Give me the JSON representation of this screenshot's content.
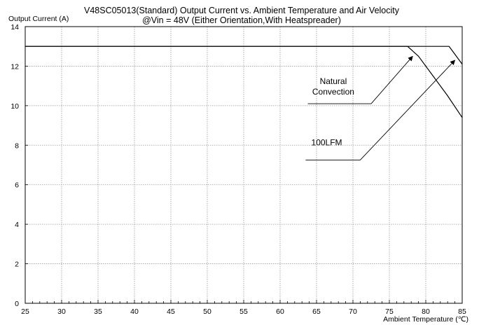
{
  "chart_data": {
    "type": "line",
    "title": "V48SC05013(Standard)  Output Current vs. Ambient Temperature and Air Velocity",
    "subtitle": "@Vin = 48V (Either Orientation,With Heatspreader)",
    "xlabel": "Ambient Temperature (℃)",
    "ylabel": "Output Current (A)",
    "xlim": [
      25,
      85
    ],
    "ylim": [
      0,
      14
    ],
    "x_ticks": [
      25,
      30,
      35,
      40,
      45,
      50,
      55,
      60,
      65,
      70,
      75,
      80,
      85
    ],
    "y_ticks": [
      0,
      2,
      4,
      6,
      8,
      10,
      12,
      14
    ],
    "x_minor_step": 1,
    "grid": true,
    "series": [
      {
        "name": "Natural Convection",
        "color": "#000000",
        "points": [
          [
            25,
            13
          ],
          [
            77.5,
            13
          ],
          [
            79,
            12.5
          ],
          [
            81,
            11.5
          ],
          [
            83,
            10.5
          ],
          [
            85,
            9.4
          ]
        ]
      },
      {
        "name": "100LFM",
        "color": "#000000",
        "points": [
          [
            25,
            13
          ],
          [
            83.2,
            13
          ],
          [
            84,
            12.6
          ],
          [
            85,
            12.1
          ]
        ]
      }
    ],
    "annotations": [
      {
        "lines": [
          "Natural",
          "Convection"
        ],
        "text_at": [
          67.3,
          11.1
        ],
        "leader": [
          [
            63.8,
            10.1
          ],
          [
            72.5,
            10.1
          ],
          [
            78.2,
            12.5
          ]
        ],
        "series": "Natural Convection"
      },
      {
        "lines": [
          "100LFM"
        ],
        "text_at": [
          66.4,
          8.0
        ],
        "leader": [
          [
            63.5,
            7.25
          ],
          [
            71,
            7.25
          ],
          [
            84,
            12.3
          ]
        ],
        "series": "100LFM"
      }
    ]
  }
}
